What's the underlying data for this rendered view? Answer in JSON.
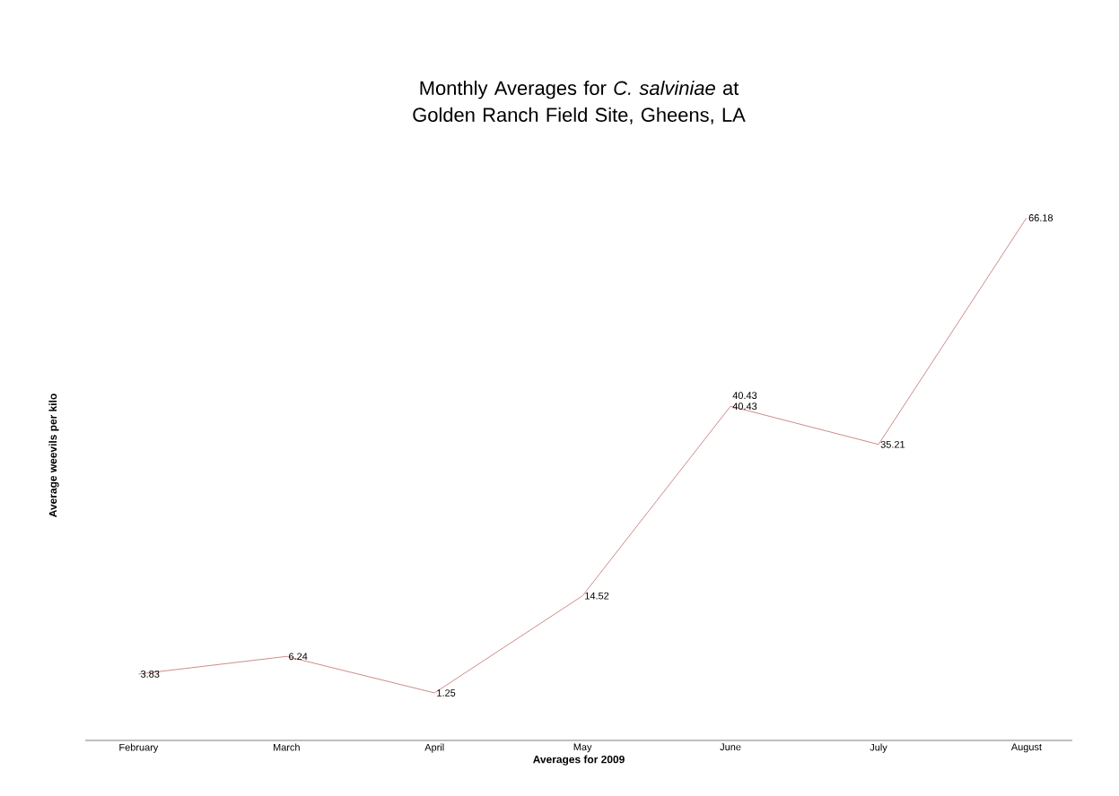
{
  "chart_data": {
    "type": "line",
    "title": "Monthly Averages for *C. salviniae* at Golden Ranch Field Site, Gheens, LA",
    "xlabel": "Averages for 2009",
    "ylabel": "Average weevils per kilo",
    "categories": [
      "February",
      "March",
      "April",
      "May",
      "June",
      "July",
      "August"
    ],
    "series": [
      {
        "color": "#d08a8a",
        "values": [
          3.83,
          6.24,
          1.25,
          14.52,
          40.43,
          35.21,
          66.18
        ]
      }
    ],
    "data_labels": true,
    "tick_labels": "x",
    "grid": false,
    "marker": "none",
    "line_style": "solid",
    "annotations": [
      {
        "text": "40.43",
        "x": "June",
        "y": 40.43
      }
    ]
  }
}
